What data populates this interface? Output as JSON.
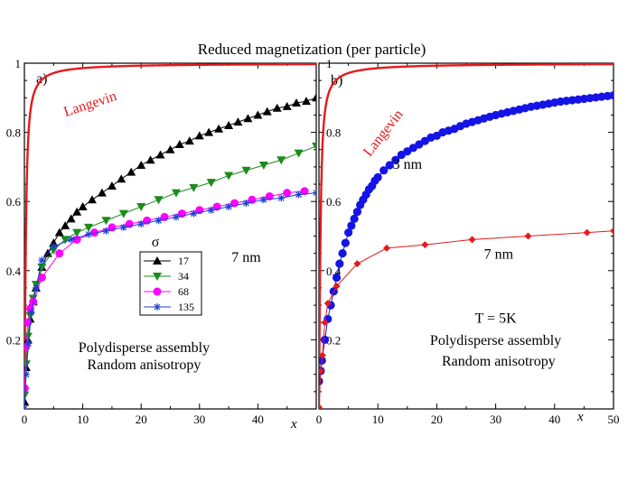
{
  "figure_title": "Reduced magnetization (per particle)",
  "chart_data": [
    {
      "type": "line",
      "panel_label": "a)",
      "xlabel": "x",
      "ylabel": "",
      "xlim": [
        0,
        50
      ],
      "ylim": [
        0,
        1
      ],
      "xticks": [
        0,
        10,
        20,
        30,
        40
      ],
      "yticks": [
        0.2,
        0.4,
        0.6,
        0.8,
        1
      ],
      "ytick_labels": [
        "0.2",
        "0.4",
        "0.6",
        "0.8",
        "1"
      ],
      "grid": false,
      "annotations": [
        {
          "id": "size",
          "text": "7 nm",
          "x": 38,
          "y": 0.425
        },
        {
          "id": "assembly",
          "text": "Polydisperse assembly",
          "x": 20.5,
          "y": 0.165
        },
        {
          "id": "anisotropy",
          "text": "Random anisotropy",
          "x": 20.5,
          "y": 0.115
        }
      ],
      "legend": {
        "title": "σ",
        "position": "center",
        "entries": [
          "17",
          "34",
          "68",
          "135"
        ]
      },
      "series": [
        {
          "name": "Langevin",
          "label": "Langevin",
          "color": "#e41a1c",
          "marker": "none",
          "curve": "langevin",
          "label_x": 11.5,
          "label_y": 0.87,
          "label_rotate": -18
        },
        {
          "name": "17",
          "color": "#000000",
          "marker": "triangle-up",
          "x": [
            0.05,
            0.3,
            0.6,
            1,
            1.5,
            2,
            3,
            4,
            5,
            6,
            7,
            8,
            9,
            10,
            11.6,
            13.3,
            15,
            16.6,
            18.3,
            20,
            21.6,
            23.3,
            25,
            26.6,
            28.3,
            30,
            31.6,
            33.3,
            35,
            36.6,
            38.3,
            40,
            41.6,
            43.3,
            45,
            46.6,
            48.3,
            50
          ],
          "y": [
            0.02,
            0.12,
            0.2,
            0.26,
            0.31,
            0.35,
            0.41,
            0.45,
            0.48,
            0.51,
            0.53,
            0.55,
            0.57,
            0.585,
            0.605,
            0.625,
            0.645,
            0.665,
            0.685,
            0.705,
            0.72,
            0.735,
            0.75,
            0.765,
            0.775,
            0.79,
            0.8,
            0.81,
            0.82,
            0.83,
            0.84,
            0.85,
            0.86,
            0.87,
            0.875,
            0.885,
            0.89,
            0.9
          ]
        },
        {
          "name": "34",
          "color": "#1a8c1a",
          "marker": "triangle-down",
          "x": [
            0.05,
            0.3,
            0.6,
            1,
            1.5,
            2,
            3,
            5,
            7,
            9,
            11,
            14,
            17,
            20,
            23,
            26,
            29,
            32,
            35,
            38,
            41,
            44,
            47,
            50
          ],
          "y": [
            0.04,
            0.13,
            0.21,
            0.27,
            0.32,
            0.36,
            0.41,
            0.46,
            0.49,
            0.51,
            0.525,
            0.545,
            0.565,
            0.585,
            0.605,
            0.625,
            0.64,
            0.655,
            0.675,
            0.69,
            0.705,
            0.72,
            0.74,
            0.76
          ]
        },
        {
          "name": "68",
          "color": "#ff00ff",
          "marker": "circle",
          "x": [
            0.05,
            0.3,
            0.6,
            1,
            1.5,
            3,
            6,
            9,
            12,
            15,
            18,
            21,
            24,
            27,
            30,
            33,
            36,
            39,
            42,
            45,
            48
          ],
          "y": [
            0.06,
            0.18,
            0.25,
            0.29,
            0.31,
            0.38,
            0.45,
            0.49,
            0.51,
            0.525,
            0.535,
            0.545,
            0.555,
            0.565,
            0.575,
            0.585,
            0.595,
            0.605,
            0.615,
            0.625,
            0.63
          ]
        },
        {
          "name": "135",
          "color": "#1f3fd1",
          "marker": "asterisk",
          "x": [
            0,
            0.3,
            0.7,
            1.2,
            2,
            3,
            5,
            8,
            11,
            14,
            17,
            20,
            23,
            26,
            29,
            32,
            35,
            38,
            41,
            44,
            47,
            50
          ],
          "y": [
            0,
            0.1,
            0.19,
            0.28,
            0.35,
            0.43,
            0.47,
            0.49,
            0.505,
            0.515,
            0.525,
            0.535,
            0.545,
            0.555,
            0.565,
            0.575,
            0.585,
            0.595,
            0.605,
            0.61,
            0.62,
            0.625
          ]
        }
      ]
    },
    {
      "type": "line",
      "panel_label": "b)",
      "xlabel": "x",
      "ylabel": "",
      "xlim": [
        0,
        50
      ],
      "ylim": [
        0,
        1
      ],
      "xticks": [
        0,
        10,
        20,
        30,
        40,
        50
      ],
      "yticks": [
        0.2,
        0.4,
        0.6,
        0.8,
        1
      ],
      "ytick_labels": [
        "0.2",
        "0.4",
        "0.6",
        "0.8",
        "1"
      ],
      "grid": false,
      "annotations": [
        {
          "id": "size-3nm",
          "text": "3 nm",
          "x": 15,
          "y": 0.695
        },
        {
          "id": "size-7nm",
          "text": "7 nm",
          "x": 30.5,
          "y": 0.435
        },
        {
          "id": "temperature",
          "text": "T = 5K",
          "x": 30,
          "y": 0.25
        },
        {
          "id": "assembly",
          "text": "Polydisperse assembly",
          "x": 30,
          "y": 0.185
        },
        {
          "id": "anisotropy",
          "text": "Random anisotropy",
          "x": 30.5,
          "y": 0.125
        }
      ],
      "series": [
        {
          "name": "Langevin",
          "label": "Langevin",
          "color": "#e41a1c",
          "marker": "none",
          "curve": "langevin",
          "label_x": 11.5,
          "label_y": 0.79,
          "label_rotate": -52
        },
        {
          "name": "3 nm",
          "color": "#1414e6",
          "marker": "filled-circle",
          "x": [
            0,
            0.3,
            0.5,
            1,
            1.5,
            2,
            2.5,
            3,
            3.5,
            4,
            4.5,
            5,
            5.5,
            6,
            6.5,
            7,
            7.5,
            8,
            8.5,
            9,
            9.5,
            10,
            11,
            12,
            13,
            14,
            15,
            16,
            17,
            18,
            19,
            20,
            21,
            22,
            23,
            24,
            25,
            26,
            27,
            28,
            29,
            30,
            31,
            32,
            33,
            34,
            35,
            36,
            37,
            38,
            39,
            40,
            41,
            42,
            43,
            44,
            45,
            46,
            47,
            48,
            49,
            50
          ],
          "y": [
            0.08,
            0.11,
            0.14,
            0.2,
            0.26,
            0.3,
            0.34,
            0.38,
            0.42,
            0.45,
            0.48,
            0.51,
            0.53,
            0.55,
            0.57,
            0.59,
            0.605,
            0.62,
            0.635,
            0.645,
            0.66,
            0.67,
            0.69,
            0.705,
            0.72,
            0.735,
            0.745,
            0.755,
            0.765,
            0.775,
            0.785,
            0.79,
            0.8,
            0.805,
            0.81,
            0.818,
            0.825,
            0.83,
            0.835,
            0.84,
            0.845,
            0.85,
            0.854,
            0.858,
            0.862,
            0.866,
            0.87,
            0.874,
            0.877,
            0.88,
            0.883,
            0.886,
            0.889,
            0.891,
            0.893,
            0.895,
            0.897,
            0.899,
            0.901,
            0.903,
            0.905,
            0.907
          ]
        },
        {
          "name": "7 nm",
          "color": "#e41a1c",
          "marker": "diamond",
          "x": [
            0,
            0.3,
            0.6,
            1,
            1.5,
            3,
            6.5,
            11.5,
            18,
            26,
            35.5,
            45.5,
            50
          ],
          "y": [
            0.005,
            0.11,
            0.155,
            0.25,
            0.305,
            0.355,
            0.42,
            0.465,
            0.475,
            0.49,
            0.5,
            0.51,
            0.515
          ]
        }
      ]
    }
  ]
}
